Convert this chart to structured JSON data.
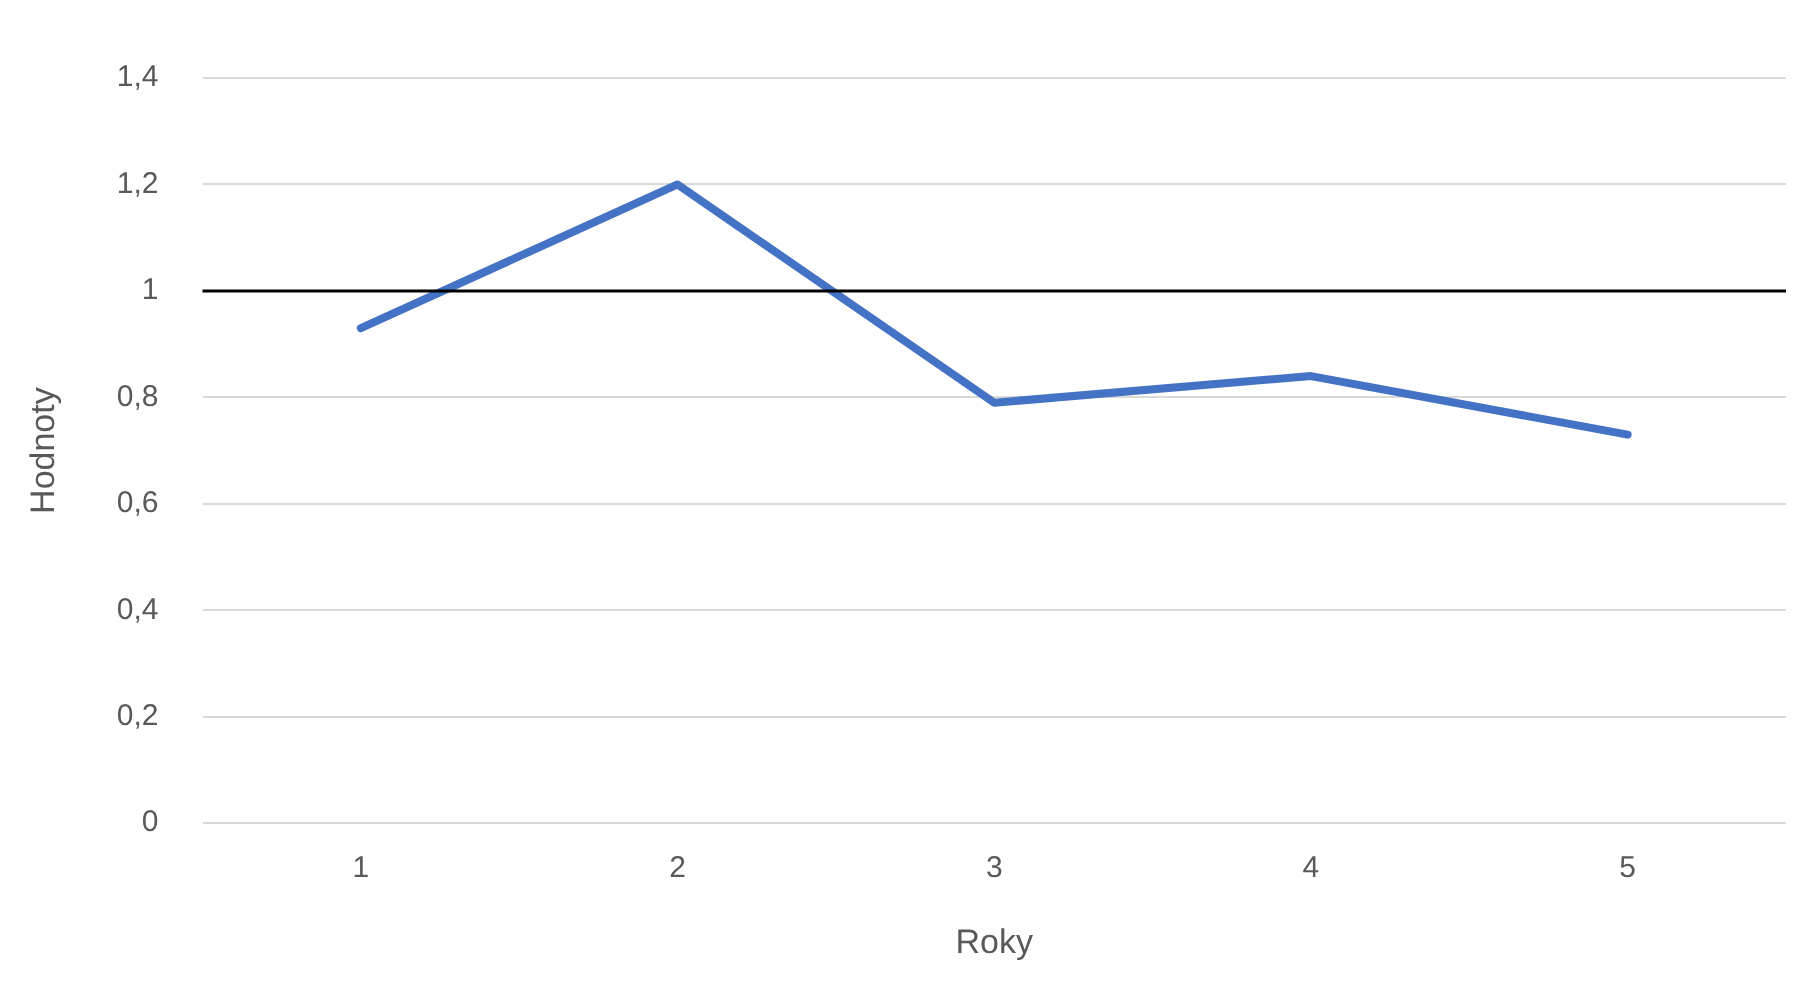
{
  "chart_data": {
    "type": "line",
    "xlabel": "Roky",
    "ylabel": "Hodnoty",
    "categories": [
      "1",
      "2",
      "3",
      "4",
      "5"
    ],
    "series": [
      {
        "color": "#4472c4",
        "values": [
          0.93,
          1.2,
          0.79,
          0.84,
          0.73
        ]
      }
    ],
    "ylim": [
      0,
      1.4
    ],
    "yticks": [
      0,
      {
        "value": 0.2,
        "label": "0,2"
      },
      {
        "value": 0.4,
        "label": "0,4"
      },
      {
        "value": 0.6,
        "label": "0,6"
      },
      {
        "value": 0.8,
        "label": "0,8"
      },
      1,
      {
        "value": 1.2,
        "label": "1,2"
      },
      {
        "value": 1.4,
        "label": "1,4"
      }
    ],
    "ref_lines": [
      {
        "axis": "y",
        "value": 1,
        "color": "#000000"
      }
    ],
    "grid": "y",
    "legend": false,
    "marker": "none",
    "line_style": "solid"
  }
}
